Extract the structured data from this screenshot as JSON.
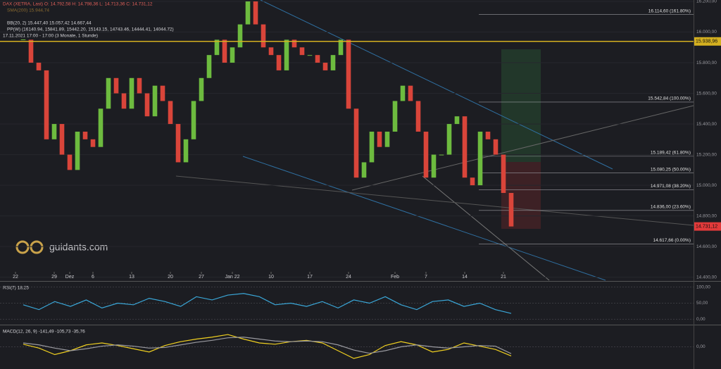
{
  "header": {
    "quote": "DAX (XETRA, Last)  O: 14.792,58  H: 14.798,36  L: 14.713,36  C: 14.731,12",
    "sma": "SMA(200) 15.944,74",
    "bb": "BB(20, 2)  15.447,40  15.057,42  14.667,44",
    "pp": "PP(W)  (16140.94, 15841.89, 15442.20, 15143.15, 14743.46, 14444.41, 14044.72)",
    "range": "17.11.2021 17:00 - 17:00  (3 Monate, 1 Stunde)",
    "watermark": "guidants.com"
  },
  "chart_data": [
    {
      "type": "candlestick",
      "up_color": "#6dbb3f",
      "down_color": "#d9453a",
      "values": [
        15950,
        15800,
        15750,
        15300,
        15400,
        15200,
        15100,
        15350,
        15300,
        15250,
        15500,
        15700,
        15600,
        15500,
        15700,
        15600,
        15450,
        15650,
        15550,
        15400,
        15150,
        15300,
        15550,
        15700,
        15850,
        15950,
        15800,
        15900,
        16050,
        16200,
        16050,
        15900,
        15850,
        15750,
        15950,
        15900,
        15850,
        15850,
        15800,
        15750,
        15850,
        15950,
        15500,
        15050,
        15150,
        15350,
        15250,
        15350,
        15550,
        15650,
        15550,
        15350,
        15050,
        15200,
        15200,
        15400,
        15450,
        15050,
        15000,
        15350,
        15300,
        15200,
        14950,
        14731.12
      ],
      "xlim": [
        -3,
        87
      ],
      "xticks": [
        {
          "value": -1,
          "label": "22"
        },
        {
          "value": 4,
          "label": "29"
        },
        {
          "value": 6,
          "label": "Dez"
        },
        {
          "value": 9,
          "label": "6"
        },
        {
          "value": 14,
          "label": "13"
        },
        {
          "value": 19,
          "label": "20"
        },
        {
          "value": 23,
          "label": "27"
        },
        {
          "value": 27,
          "label": "Jan 22"
        },
        {
          "value": 32,
          "label": "10"
        },
        {
          "value": 37,
          "label": "17"
        },
        {
          "value": 42,
          "label": "24"
        },
        {
          "value": 48,
          "label": "Feb"
        },
        {
          "value": 52,
          "label": "7"
        },
        {
          "value": 57,
          "label": "14"
        },
        {
          "value": 62,
          "label": "21"
        }
      ],
      "ylim": [
        14380,
        16200
      ],
      "yticks": [
        {
          "value": 16200,
          "label": "16.200,00"
        },
        {
          "value": 16000,
          "label": "16.000,00"
        },
        {
          "value": 15800,
          "label": "15.800,00"
        },
        {
          "value": 15600,
          "label": "15.600,00"
        },
        {
          "value": 15400,
          "label": "15.400,00"
        },
        {
          "value": 15200,
          "label": "15.200,00"
        },
        {
          "value": 15000,
          "label": "15.000,00"
        },
        {
          "value": 14800,
          "label": "14.800,00"
        },
        {
          "value": 14600,
          "label": "14.600,00"
        },
        {
          "value": 14400,
          "label": "14.400,00"
        }
      ],
      "fib_levels": [
        {
          "value": 16114.6,
          "label": "16.114,60 (161.80%)"
        },
        {
          "value": 15542.84,
          "label": "15.542,84 (100.00%)"
        },
        {
          "value": 15189.42,
          "label": "15.189,42 (61.80%)"
        },
        {
          "value": 15080.25,
          "label": "15.080,25 (50.00%)"
        },
        {
          "value": 14971.08,
          "label": "14.971,08 (38.20%)"
        },
        {
          "value": 14836,
          "label": "14.836,00 (23.60%)"
        },
        {
          "value": 14617.66,
          "label": "14.617,66 (0.00%)"
        }
      ],
      "price_tags": [
        {
          "value": 15938.96,
          "label": "15.938,96",
          "color": "#d4b020"
        },
        {
          "value": 14731.12,
          "label": "14.731,12",
          "color": "#e23a3a"
        }
      ]
    },
    {
      "type": "line",
      "title": "RSI(7)  18,25",
      "color": "#3aa7d8",
      "values": [
        45,
        30,
        55,
        40,
        60,
        35,
        50,
        45,
        65,
        55,
        40,
        70,
        60,
        75,
        80,
        70,
        45,
        50,
        40,
        55,
        35,
        60,
        50,
        70,
        45,
        30,
        55,
        60,
        40,
        50,
        30,
        18.25
      ],
      "ylim": [
        -10,
        110
      ],
      "yticks": [
        {
          "value": 100,
          "label": "100,00"
        },
        {
          "value": 50,
          "label": "50,00"
        },
        {
          "value": 0,
          "label": "0,00"
        }
      ]
    },
    {
      "type": "line",
      "title": "MACD(12, 26, 9)  -141,49  -105,73  -35,76",
      "series": [
        {
          "name": "MACD",
          "color": "#f0d020",
          "values": [
            40,
            -20,
            -120,
            -60,
            30,
            60,
            20,
            -30,
            -80,
            20,
            80,
            120,
            150,
            190,
            120,
            60,
            40,
            80,
            100,
            60,
            -60,
            -180,
            -120,
            20,
            80,
            30,
            -80,
            -40,
            60,
            10,
            -40,
            -141.49
          ]
        },
        {
          "name": "Signal",
          "color": "#9a9aa0",
          "values": [
            60,
            30,
            -20,
            -60,
            -30,
            10,
            30,
            10,
            -20,
            -10,
            30,
            70,
            100,
            140,
            150,
            120,
            90,
            80,
            90,
            80,
            30,
            -50,
            -100,
            -60,
            0,
            30,
            0,
            -20,
            0,
            20,
            10,
            -105.73
          ]
        }
      ],
      "ylim": [
        -300,
        300
      ],
      "yticks": [
        {
          "value": 0,
          "label": "0,00"
        }
      ]
    }
  ]
}
